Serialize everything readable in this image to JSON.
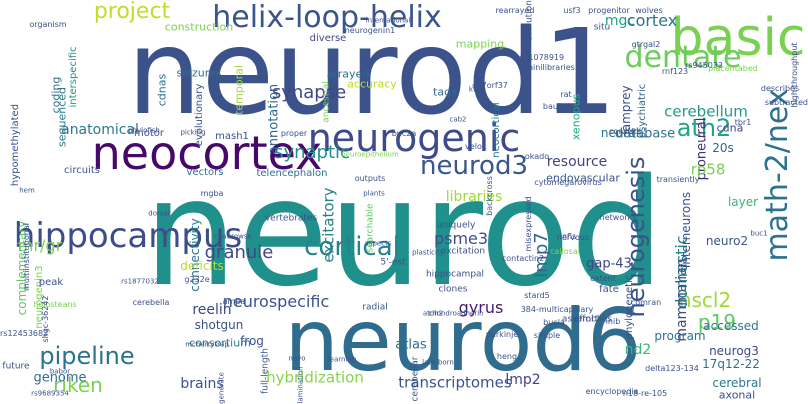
{
  "words": [
    {
      "text": "neurod",
      "color": "#20908c",
      "vertical": false
    },
    {
      "text": "neurod1",
      "color": "#3b528b",
      "vertical": false
    },
    {
      "text": "neurod6",
      "color": "#2f6c8e",
      "vertical": false
    },
    {
      "text": "basic",
      "color": "#7ad151",
      "vertical": false
    },
    {
      "text": "neocortex",
      "color": "#46086a",
      "vertical": false
    },
    {
      "text": "neurogenic",
      "color": "#3e4a89",
      "vertical": false
    },
    {
      "text": "helix-loop-helix",
      "color": "#3a548c",
      "vertical": false
    },
    {
      "text": "hippocampus",
      "color": "#3d4d8a",
      "vertical": false
    },
    {
      "text": "math-2/nex",
      "color": "#2c728e",
      "vertical": true
    },
    {
      "text": "dentate",
      "color": "#6ccd5a",
      "vertical": false
    },
    {
      "text": "cortical",
      "color": "#25838e",
      "vertical": false
    },
    {
      "text": "pipeline",
      "color": "#2c738e",
      "vertical": false
    },
    {
      "text": "neurod3",
      "color": "#39568c",
      "vertical": false
    },
    {
      "text": "ath2",
      "color": "#21a585",
      "vertical": false
    },
    {
      "text": "neurogenesis",
      "color": "#3b528b",
      "vertical": true
    },
    {
      "text": "riken",
      "color": "#7ad151",
      "vertical": false
    },
    {
      "text": "p19",
      "color": "#5ec962",
      "vertical": false
    },
    {
      "text": "project",
      "color": "#bddf26",
      "vertical": false
    },
    {
      "text": "granule",
      "color": "#3f4889",
      "vertical": false
    },
    {
      "text": "neurospecific",
      "color": "#3b528b",
      "vertical": false
    },
    {
      "text": "nscl2",
      "color": "#9fd938",
      "vertical": false
    },
    {
      "text": "synapse",
      "color": "#414487",
      "vertical": false
    },
    {
      "text": "cerebellum",
      "color": "#1f9a8a",
      "vertical": false
    },
    {
      "text": "synaptic",
      "color": "#21918c",
      "vertical": false
    },
    {
      "text": "psme3",
      "color": "#3e4c8a",
      "vertical": false
    },
    {
      "text": "mgc",
      "color": "#20a486",
      "vertical": false
    },
    {
      "text": "cortex",
      "color": "#2b758e",
      "vertical": false
    },
    {
      "text": "lmp7",
      "color": "#31678e",
      "vertical": true
    },
    {
      "text": "gyrus",
      "color": "#481a6c",
      "vertical": false
    },
    {
      "text": "resource",
      "color": "#414487",
      "vertical": false
    },
    {
      "text": "reelin",
      "color": "#3f4889",
      "vertical": false
    },
    {
      "text": "nd2",
      "color": "#35b779",
      "vertical": false
    },
    {
      "text": "anatomical",
      "color": "#2a788e",
      "vertical": false
    },
    {
      "text": "libraries",
      "color": "#9fd938",
      "vertical": false
    },
    {
      "text": "proneural",
      "color": "#472c7a",
      "vertical": true
    },
    {
      "text": "domestic",
      "color": "#25838e",
      "vertical": true
    },
    {
      "text": "neuro2",
      "color": "#3b528b",
      "vertical": false
    },
    {
      "text": "mr/gr",
      "color": "#7ad151",
      "vertical": false
    },
    {
      "text": "excitatory",
      "color": "#26828e",
      "vertical": true
    },
    {
      "text": "genome",
      "color": "#2c728e",
      "vertical": false
    },
    {
      "text": "connectivity",
      "color": "#2a788e",
      "vertical": true
    },
    {
      "text": "complementary",
      "color": "#5ec962",
      "vertical": true
    },
    {
      "text": "hybridization",
      "color": "#86d549",
      "vertical": false
    },
    {
      "text": "transcriptomes",
      "color": "#3b528b",
      "vertical": false
    },
    {
      "text": "frog",
      "color": "#3b528b",
      "vertical": false
    },
    {
      "text": "brains",
      "color": "#3b528b",
      "vertical": false
    },
    {
      "text": "atlas",
      "color": "#2f6c8e",
      "vertical": false
    },
    {
      "text": "gap-43",
      "color": "#414487",
      "vertical": false
    },
    {
      "text": "annotation",
      "color": "#31678e",
      "vertical": true
    },
    {
      "text": "lmp2",
      "color": "#414487",
      "vertical": false
    },
    {
      "text": "rp58",
      "color": "#7ad151",
      "vertical": false
    },
    {
      "text": "database",
      "color": "#2c728e",
      "vertical": false
    },
    {
      "text": "mammalian",
      "color": "#3e4a89",
      "vertical": true
    },
    {
      "text": "interneurons",
      "color": "#3b528b",
      "vertical": true
    },
    {
      "text": "layer",
      "color": "#35b779",
      "vertical": false
    },
    {
      "text": "shotgun",
      "color": "#3b528b",
      "vertical": false
    },
    {
      "text": "consortium",
      "color": "#2a788e",
      "vertical": false
    },
    {
      "text": "deficits",
      "color": "#b8de29",
      "vertical": false
    },
    {
      "text": "accessed",
      "color": "#2c728e",
      "vertical": false
    },
    {
      "text": "program",
      "color": "#2c728e",
      "vertical": false
    },
    {
      "text": "neurog3",
      "color": "#3e4a89",
      "vertical": false
    },
    {
      "text": "17q12-22",
      "color": "#2c728e",
      "vertical": false
    },
    {
      "text": "cerebral",
      "color": "#2a788e",
      "vertical": false
    },
    {
      "text": "axonal",
      "color": "#3b528b",
      "vertical": false
    },
    {
      "text": "20s",
      "color": "#31678e",
      "vertical": false
    },
    {
      "text": "cdna",
      "color": "#3e4a89",
      "vertical": false
    },
    {
      "text": "neural",
      "color": "#2a788e",
      "vertical": false
    },
    {
      "text": "lamprey",
      "color": "#3e4a89",
      "vertical": true
    },
    {
      "text": "psychiatric",
      "color": "#31678e",
      "vertical": true
    },
    {
      "text": "xenopus",
      "color": "#22a884",
      "vertical": true
    },
    {
      "text": "diverse",
      "color": "#414487",
      "vertical": false
    },
    {
      "text": "mapping",
      "color": "#7ad151",
      "vertical": false
    },
    {
      "text": "construction",
      "color": "#7ad151",
      "vertical": false
    },
    {
      "text": "tags",
      "color": "#2f6c8e",
      "vertical": false
    },
    {
      "text": "arrayed",
      "color": "#2f6c8e",
      "vertical": false
    },
    {
      "text": "accuracy",
      "color": "#b8de29",
      "vertical": false
    },
    {
      "text": "seizures",
      "color": "#2f6c8e",
      "vertical": false
    },
    {
      "text": "evolutionary",
      "color": "#3b528b",
      "vertical": true
    },
    {
      "text": "temporal",
      "color": "#a0da39",
      "vertical": true
    },
    {
      "text": "cdnas",
      "color": "#2c728e",
      "vertical": true
    },
    {
      "text": "coding",
      "color": "#2c728e",
      "vertical": true
    },
    {
      "text": "sequenced",
      "color": "#2a788e",
      "vertical": true
    },
    {
      "text": "interspecific",
      "color": "#21918c",
      "vertical": true
    },
    {
      "text": "hypomethylated",
      "color": "#3b528b",
      "vertical": true
    },
    {
      "text": "circuits",
      "color": "#3b528b",
      "vertical": false
    },
    {
      "text": "vectors",
      "color": "#2c728e",
      "vertical": false
    },
    {
      "text": "telencephalon",
      "color": "#2c728e",
      "vertical": false
    },
    {
      "text": "motor",
      "color": "#3b528b",
      "vertical": false
    },
    {
      "text": "mash1",
      "color": "#3b528b",
      "vertical": false
    },
    {
      "text": "ancestral",
      "color": "#7ad151",
      "vertical": true
    },
    {
      "text": "neocortical",
      "color": "#2c728e",
      "vertical": true
    },
    {
      "text": "endovascular",
      "color": "#3b528b",
      "vertical": false
    },
    {
      "text": "searchable",
      "color": "#5ec962",
      "vertical": true
    },
    {
      "text": "uniquely",
      "color": "#3b528b",
      "vertical": false
    },
    {
      "text": "excitation",
      "color": "#3b528b",
      "vertical": false
    },
    {
      "text": "5'-est",
      "color": "#3b528b",
      "vertical": false
    },
    {
      "text": "hippocampal",
      "color": "#3b528b",
      "vertical": false
    },
    {
      "text": "clones",
      "color": "#3b528b",
      "vertical": false
    },
    {
      "text": "assemblies",
      "color": "#3b528b",
      "vertical": false
    },
    {
      "text": "fate",
      "color": "#3b528b",
      "vertical": false
    },
    {
      "text": "phylogenetic",
      "color": "#3b528b",
      "vertical": true
    },
    {
      "text": "vertebrates",
      "color": "#3b528b",
      "vertical": false
    },
    {
      "text": "neurogenin3",
      "color": "#7ad151",
      "vertical": true
    },
    {
      "text": "peak",
      "color": "#3b528b",
      "vertical": false
    },
    {
      "text": "radial",
      "color": "#3b528b",
      "vertical": false
    },
    {
      "text": "effort",
      "color": "#3b528b",
      "vertical": false
    },
    {
      "text": "full-length",
      "color": "#3b528b",
      "vertical": true
    },
    {
      "text": "cerebellar",
      "color": "#3b528b",
      "vertical": true
    },
    {
      "text": "future",
      "color": "#3b528b",
      "vertical": false
    },
    {
      "text": "situ",
      "color": "#3b528b",
      "vertical": false
    },
    {
      "text": "evolution",
      "color": "#3b528b",
      "vertical": true
    },
    {
      "text": "organism",
      "color": "#3b528b",
      "vertical": false
    },
    {
      "text": "neurogenin1",
      "color": "#3b528b",
      "vertical": false
    },
    {
      "text": "rearrayed",
      "color": "#3b528b",
      "vertical": false
    },
    {
      "text": "usf3",
      "color": "#3b528b",
      "vertical": false
    },
    {
      "text": "progenitor",
      "color": "#3b528b",
      "vertical": false
    },
    {
      "text": "wolves",
      "color": "#3b528b",
      "vertical": false
    },
    {
      "text": "gtrgal2",
      "color": "#3b528b",
      "vertical": false
    },
    {
      "text": "rs945032",
      "color": "#3b528b",
      "vertical": false
    },
    {
      "text": "rnf123",
      "color": "#3b528b",
      "vertical": false
    },
    {
      "text": "placentabed",
      "color": "#7ad151",
      "vertical": false
    },
    {
      "text": "high-throughput",
      "color": "#3b528b",
      "vertical": true
    },
    {
      "text": "describes",
      "color": "#3b528b",
      "vertical": false
    },
    {
      "text": "subtracted",
      "color": "#3b528b",
      "vertical": false
    },
    {
      "text": "tbr1",
      "color": "#3b528b",
      "vertical": false
    },
    {
      "text": "international",
      "color": "#3b528b",
      "vertical": false
    },
    {
      "text": "rs11078919",
      "color": "#3b528b",
      "vertical": false
    },
    {
      "text": "minilibraries",
      "color": "#3b528b",
      "vertical": false
    },
    {
      "text": "rat",
      "color": "#3b528b",
      "vertical": false
    },
    {
      "text": "baubet",
      "color": "#3b528b",
      "vertical": false
    },
    {
      "text": "c17orf37",
      "color": "#3b528b",
      "vertical": false
    },
    {
      "text": "kw8",
      "color": "#3b528b",
      "vertical": false
    },
    {
      "text": "cab2",
      "color": "#3b528b",
      "vertical": false
    },
    {
      "text": "riss",
      "color": "#3b528b",
      "vertical": false
    },
    {
      "text": "velo1",
      "color": "#3b528b",
      "vertical": false
    },
    {
      "text": "phylofish",
      "color": "#3b528b",
      "vertical": false
    },
    {
      "text": "picking",
      "color": "#3b528b",
      "vertical": false
    },
    {
      "text": "proper",
      "color": "#3b528b",
      "vertical": false
    },
    {
      "text": "buc2a",
      "color": "#3b528b",
      "vertical": false
    },
    {
      "text": "consists",
      "color": "#3b528b",
      "vertical": false
    },
    {
      "text": "neuroepithelium",
      "color": "#7ad151",
      "vertical": false
    },
    {
      "text": "cytomegarovirus",
      "color": "#3b528b",
      "vertical": false
    },
    {
      "text": "transiently",
      "color": "#3b528b",
      "vertical": false
    },
    {
      "text": "okado",
      "color": "#3b528b",
      "vertical": false
    },
    {
      "text": "outputs",
      "color": "#3b528b",
      "vertical": false
    },
    {
      "text": "hem",
      "color": "#3b528b",
      "vertical": false
    },
    {
      "text": "mgba",
      "color": "#3b528b",
      "vertical": false
    },
    {
      "text": "dorsal",
      "color": "#3b528b",
      "vertical": false
    },
    {
      "text": "plants",
      "color": "#3b528b",
      "vertical": false
    },
    {
      "text": "backcross",
      "color": "#3b528b",
      "vertical": true
    },
    {
      "text": "misexpressed",
      "color": "#3b528b",
      "vertical": true
    },
    {
      "text": "infls",
      "color": "#3b528b",
      "vertical": false
    },
    {
      "text": "callosal",
      "color": "#7ad151",
      "vertical": false
    },
    {
      "text": "nervous",
      "color": "#3b528b",
      "vertical": false
    },
    {
      "text": "extent",
      "color": "#3b528b",
      "vertical": false
    },
    {
      "text": "networks",
      "color": "#3b528b",
      "vertical": false
    },
    {
      "text": "buc1",
      "color": "#3b528b",
      "vertical": false
    },
    {
      "text": "g232e",
      "color": "#3b528b",
      "vertical": false
    },
    {
      "text": "multiinstitutional",
      "color": "#3b528b",
      "vertical": true
    },
    {
      "text": "holosteans",
      "color": "#7ad151",
      "vertical": false
    },
    {
      "text": "shgc-36242",
      "color": "#3b528b",
      "vertical": true
    },
    {
      "text": "rs12453682",
      "color": "#3b528b",
      "vertical": false
    },
    {
      "text": "rs1877032",
      "color": "#3b528b",
      "vertical": false
    },
    {
      "text": "cerebella",
      "color": "#3b528b",
      "vertical": false
    },
    {
      "text": "ampa",
      "color": "#3b528b",
      "vertical": false
    },
    {
      "text": "atoh2",
      "color": "#3b528b",
      "vertical": false
    },
    {
      "text": "chondroadherin",
      "color": "#3b528b",
      "vertical": false
    },
    {
      "text": "stard5",
      "color": "#3b528b",
      "vertical": false
    },
    {
      "text": "384-multicapillary",
      "color": "#3b528b",
      "vertical": false
    },
    {
      "text": "bucla",
      "color": "#3b528b",
      "vertical": false
    },
    {
      "text": "inib",
      "color": "#3b528b",
      "vertical": false
    },
    {
      "text": "simple",
      "color": "#3b528b",
      "vertical": false
    },
    {
      "text": "purkinje",
      "color": "#3b528b",
      "vertical": false
    },
    {
      "text": "mcherrytrap",
      "color": "#3b528b",
      "vertical": false
    },
    {
      "text": "novo",
      "color": "#3b528b",
      "vertical": false
    },
    {
      "text": "late-born",
      "color": "#3b528b",
      "vertical": false
    },
    {
      "text": "heng",
      "color": "#3b528b",
      "vertical": false
    },
    {
      "text": "learning",
      "color": "#3b528b",
      "vertical": false
    },
    {
      "text": "rs9689354",
      "color": "#3b528b",
      "vertical": false
    },
    {
      "text": "generate",
      "color": "#3b528b",
      "vertical": true
    },
    {
      "text": "lamination",
      "color": "#3b528b",
      "vertical": true
    },
    {
      "text": "encyclopedia",
      "color": "#3b528b",
      "vertical": false
    },
    {
      "text": "n18-re-105",
      "color": "#3b528b",
      "vertical": false
    },
    {
      "text": "delta123-134",
      "color": "#3b528b",
      "vertical": false
    },
    {
      "text": "aspects",
      "color": "#3b528b",
      "vertical": false
    },
    {
      "text": "plasticity",
      "color": "#3b528b",
      "vertical": false
    },
    {
      "text": "cnabrowse",
      "color": "#3b528b",
      "vertical": false
    },
    {
      "text": "contactin2",
      "color": "#3b528b",
      "vertical": false
    },
    {
      "text": "comran",
      "color": "#3b528b",
      "vertical": false
    },
    {
      "text": "babor",
      "color": "#3b528b",
      "vertical": false
    },
    {
      "text": "neurite",
      "color": "#3b528b",
      "vertical": false
    },
    {
      "text": "delta105-115",
      "color": "#3b528b",
      "vertical": true
    },
    {
      "text": "comparison",
      "color": "#7ad151",
      "vertical": true
    },
    {
      "text": "r30x",
      "color": "#7ad151",
      "vertical": false
    }
  ]
}
